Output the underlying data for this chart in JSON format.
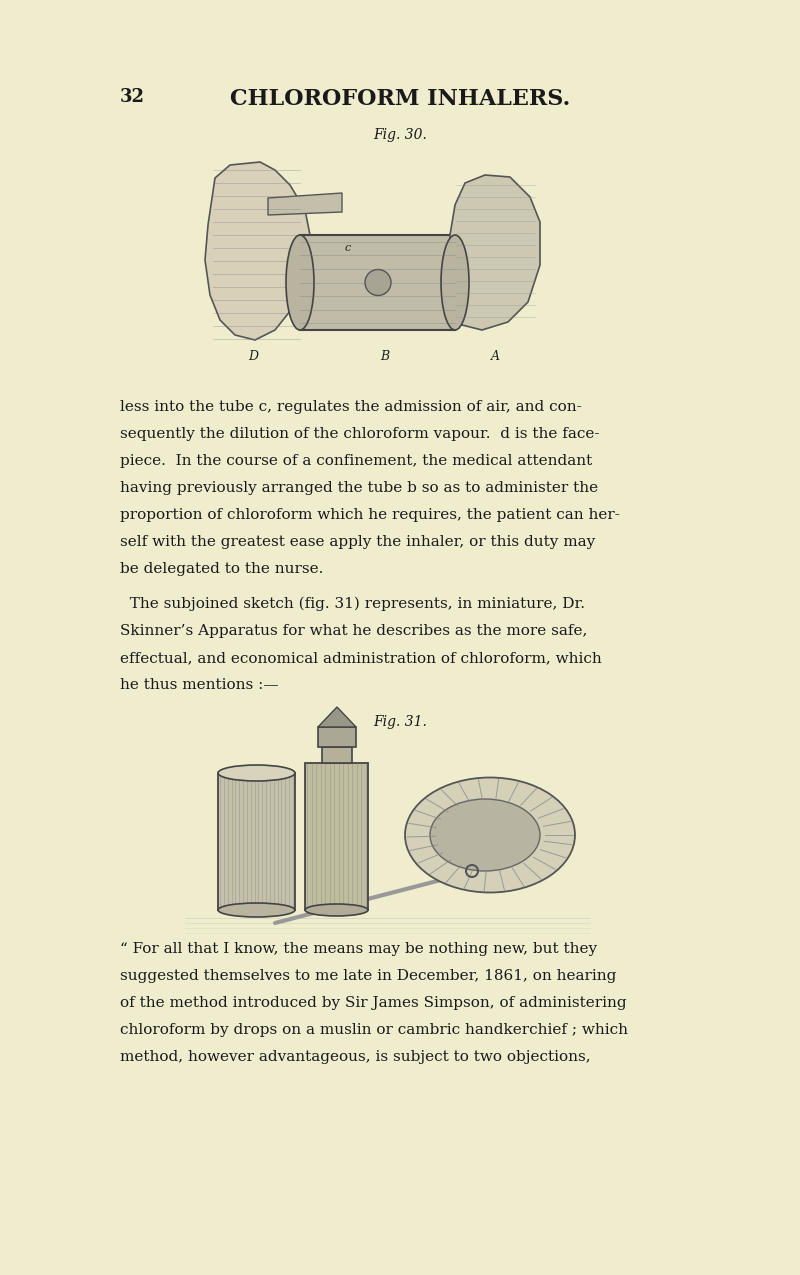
{
  "bg_color": "#f0edce",
  "page_number": "32",
  "header_title": "CHLOROFORM INHALERS.",
  "fig30_label": "Fig. 30.",
  "fig31_label": "Fig. 31.",
  "body_text_1": "less into the tube c, regulates the admission of air, and con-\nsequently the dilution of the chloroform vapour.  d is the face-\npiece.  In the course of a confinement, the medical attendant\nhaving previously arranged the tube b so as to administer the\nproportion of chloroform which he requires, the patient can her-\nself with the greatest ease apply the inhaler, or this duty may\nbe delegated to the nurse.",
  "body_text_2": "  The subjoined sketch (fig. 31) represents, in miniature, Dr.\nSkinner’s Apparatus for what he describes as the more safe,\neffectual, and economical administration of chloroform, which\nhe thus mentions :—",
  "body_text_3": "“ For all that I know, the means may be nothing new, but they\nsuggested themselves to me late in December, 1861, on hearing\nof the method introduced by Sir James Simpson, of administering\nchloroform by drops on a muslin or cambric handkerchief ; which\nmethod, however advantageous, is subject to two objections,",
  "text_color": "#1a1a1a",
  "font_size_header": 16,
  "font_size_body": 11,
  "font_size_figcap": 10,
  "font_size_pagenum": 13
}
